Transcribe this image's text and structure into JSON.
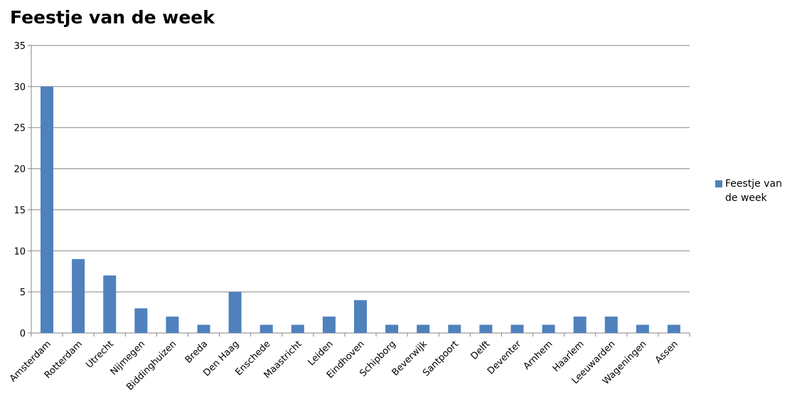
{
  "chart_data": {
    "type": "bar",
    "title": "Feestje van de week",
    "categories": [
      "Amsterdam",
      "Rotterdam",
      "Utrecht",
      "Nijmegen",
      "Biddinghuizen",
      "Breda",
      "Den Haag",
      "Enschede",
      "Maastricht",
      "Leiden",
      "Eindhoven",
      "Schipborg",
      "Beverwijk",
      "Santpoort",
      "Delft",
      "Deventer",
      "Arnhem",
      "Haarlem",
      "Leeuwarden",
      "Wageningen",
      "Assen"
    ],
    "series": [
      {
        "name": "Feestje van de week",
        "color": "#4f81bd",
        "values": [
          30,
          9,
          7,
          3,
          2,
          1,
          5,
          1,
          1,
          2,
          4,
          1,
          1,
          1,
          1,
          1,
          1,
          2,
          2,
          1,
          1
        ]
      }
    ],
    "ylim": [
      0,
      35
    ],
    "yticks": [
      0,
      5,
      10,
      15,
      20,
      25,
      30,
      35
    ],
    "grid": true,
    "legend": "right"
  }
}
